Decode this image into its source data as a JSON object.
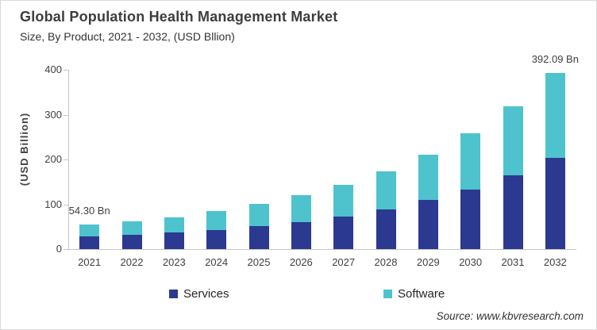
{
  "chart_data": {
    "type": "bar",
    "stacked": true,
    "title": "Global Population Health Management Market",
    "subtitle": "Size, By Product, 2021 - 2032, (USD Bllion)",
    "ylabel": "(USD Billion)",
    "source": "Source: www.kbvresearch.com",
    "categories": [
      "2021",
      "2022",
      "2023",
      "2024",
      "2025",
      "2026",
      "2027",
      "2028",
      "2029",
      "2030",
      "2031",
      "2032"
    ],
    "series": [
      {
        "name": "Services",
        "color": "#2b3990",
        "values": [
          28,
          32,
          37,
          43,
          52,
          61,
          73,
          89,
          109,
          133,
          164,
          204
        ]
      },
      {
        "name": "Software",
        "color": "#4ec3cd",
        "values": [
          26.3,
          30,
          34,
          42,
          49,
          59,
          70,
          84,
          101,
          126,
          155,
          188.09
        ]
      }
    ],
    "totals": [
      54.3,
      62,
      71,
      85,
      101,
      120,
      143,
      173,
      210,
      259,
      319,
      392.09
    ],
    "annotations": [
      {
        "category": "2021",
        "text": "54.30 Bn"
      },
      {
        "category": "2032",
        "text": "392.09 Bn"
      }
    ],
    "ylim": [
      0,
      400
    ],
    "yticks": [
      0,
      100,
      200,
      300,
      400
    ],
    "grid": false,
    "legend_position": "bottom"
  }
}
